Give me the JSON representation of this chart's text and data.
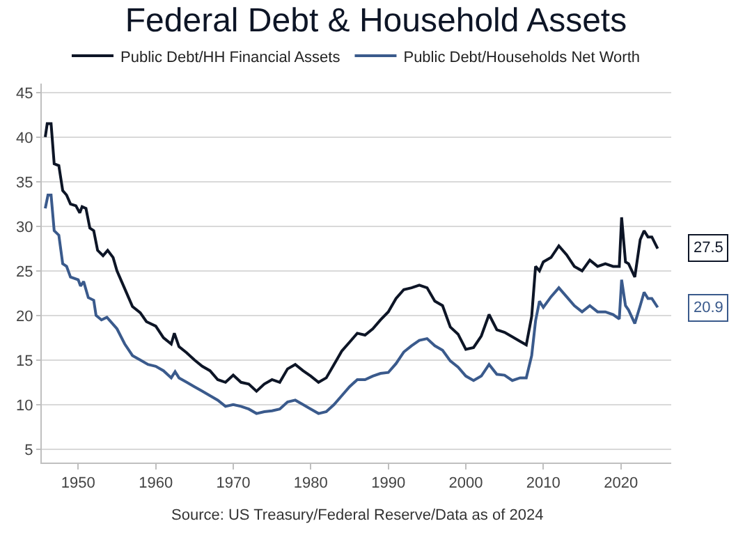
{
  "chart_data": {
    "type": "line",
    "title": "Federal Debt & Household Assets",
    "ylim": [
      3.5,
      46
    ],
    "yticks": [
      5,
      10,
      15,
      20,
      25,
      30,
      35,
      40,
      45
    ],
    "xlim": [
      1945.3,
      2026.5
    ],
    "xticks": [
      1950,
      1960,
      1970,
      1980,
      1990,
      2000,
      2010,
      2020
    ],
    "grid": "y",
    "legend": "top",
    "line_style": "solid",
    "marker": "none",
    "series": [
      {
        "name": "Public Debt/HH Financial Assets",
        "color": "#0d1526",
        "x": [
          1945.75,
          1946,
          1946.5,
          1946.9,
          1947.5,
          1948,
          1948.5,
          1949,
          1949.7,
          1950.2,
          1950.5,
          1951,
          1951.5,
          1952,
          1952.5,
          1953.2,
          1953.8,
          1954.5,
          1955,
          1956,
          1957,
          1958,
          1958.8,
          1960,
          1961,
          1962,
          1962.4,
          1963,
          1964,
          1965,
          1966,
          1967,
          1968,
          1969,
          1970,
          1971,
          1972,
          1973,
          1974,
          1975,
          1976,
          1977,
          1978,
          1979,
          1980,
          1981,
          1982,
          1983,
          1984,
          1985,
          1986,
          1987,
          1988,
          1989,
          1990,
          1991,
          1992,
          1993,
          1994,
          1995,
          1996,
          1997,
          1998,
          1999,
          2000,
          2001,
          2002,
          2003,
          2004,
          2005,
          2006,
          2007,
          2007.8,
          2008.5,
          2009,
          2009.5,
          2010,
          2011,
          2012,
          2013,
          2014,
          2015,
          2016,
          2017,
          2018,
          2019,
          2019.8,
          2020.1,
          2020.6,
          2021,
          2021.8,
          2022.5,
          2023,
          2023.5,
          2024,
          2024.75
        ],
        "values": [
          40,
          41.5,
          41.5,
          37,
          36.8,
          34,
          33.5,
          32.5,
          32.3,
          31.5,
          32.2,
          32,
          29.8,
          29.5,
          27.3,
          26.7,
          27.3,
          26.5,
          25,
          23,
          21,
          20.3,
          19.3,
          18.8,
          17.5,
          16.8,
          18,
          16.5,
          15.8,
          15,
          14.3,
          13.8,
          12.8,
          12.5,
          13.3,
          12.5,
          12.3,
          11.5,
          12.3,
          12.8,
          12.5,
          14,
          14.5,
          13.8,
          13.2,
          12.5,
          13,
          14.5,
          16,
          17,
          18,
          17.8,
          18.5,
          19.5,
          20.4,
          21.9,
          22.9,
          23.1,
          23.4,
          23.1,
          21.6,
          21.1,
          18.7,
          17.9,
          16.2,
          16.4,
          17.7,
          20.1,
          18.4,
          18.1,
          17.6,
          17.1,
          16.7,
          19.9,
          25.5,
          25,
          26,
          26.5,
          27.8,
          26.8,
          25.5,
          25,
          26.2,
          25.5,
          25.8,
          25.5,
          25.5,
          31,
          26,
          25.8,
          24.3,
          28.5,
          29.5,
          28.8,
          28.8,
          27.5
        ]
      },
      {
        "name": "Public Debt/Households Net Worth",
        "color": "#3a5a8c",
        "x": [
          1945.75,
          1946.1,
          1946.5,
          1946.9,
          1947.5,
          1948,
          1948.5,
          1949,
          1950,
          1950.3,
          1950.7,
          1951.3,
          1952,
          1952.3,
          1953,
          1953.7,
          1955,
          1956,
          1957,
          1958,
          1959,
          1960,
          1961,
          1962,
          1962.5,
          1963,
          1964,
          1965,
          1966,
          1967,
          1968,
          1969,
          1970,
          1971,
          1972,
          1973,
          1974,
          1975,
          1976,
          1977,
          1978,
          1979,
          1980,
          1981,
          1982,
          1983,
          1984,
          1985,
          1986,
          1987,
          1988,
          1989,
          1990,
          1991,
          1992,
          1993,
          1994,
          1995,
          1996,
          1997,
          1998,
          1999,
          2000,
          2001,
          2002,
          2003,
          2004,
          2005,
          2006,
          2007,
          2007.8,
          2008.5,
          2009,
          2009.5,
          2010,
          2011,
          2012,
          2013,
          2014,
          2015,
          2016,
          2017,
          2018,
          2019,
          2019.8,
          2020.1,
          2020.6,
          2021,
          2021.8,
          2022.5,
          2023,
          2023.5,
          2024,
          2024.75
        ],
        "values": [
          32,
          33.5,
          33.5,
          29.5,
          29,
          25.8,
          25.5,
          24.3,
          24,
          23.3,
          23.8,
          22,
          21.7,
          20,
          19.5,
          19.8,
          18.5,
          16.8,
          15.5,
          15,
          14.5,
          14.3,
          13.8,
          13,
          13.7,
          13,
          12.5,
          12,
          11.5,
          11,
          10.5,
          9.8,
          10,
          9.8,
          9.5,
          9,
          9.2,
          9.3,
          9.5,
          10.3,
          10.5,
          10,
          9.5,
          9,
          9.2,
          10,
          11,
          12,
          12.8,
          12.8,
          13.2,
          13.5,
          13.6,
          14.6,
          15.9,
          16.6,
          17.2,
          17.4,
          16.6,
          16.1,
          14.9,
          14.2,
          13.2,
          12.7,
          13.2,
          14.5,
          13.4,
          13.3,
          12.7,
          13,
          13,
          15.5,
          19.4,
          21.6,
          20.9,
          22.1,
          23.1,
          22.1,
          21.1,
          20.4,
          21.1,
          20.4,
          20.4,
          20.1,
          19.6,
          24,
          21.1,
          20.6,
          19.1,
          21.1,
          22.6,
          21.9,
          21.9,
          20.9
        ]
      }
    ],
    "annotations": [
      {
        "text": "27.5",
        "x": 2024.75,
        "y": 27.5
      },
      {
        "text": "20.9",
        "x": 2024.75,
        "y": 20.9
      },
      "Source: US Treasury/Federal Reserve/Data as of 2024"
    ]
  }
}
